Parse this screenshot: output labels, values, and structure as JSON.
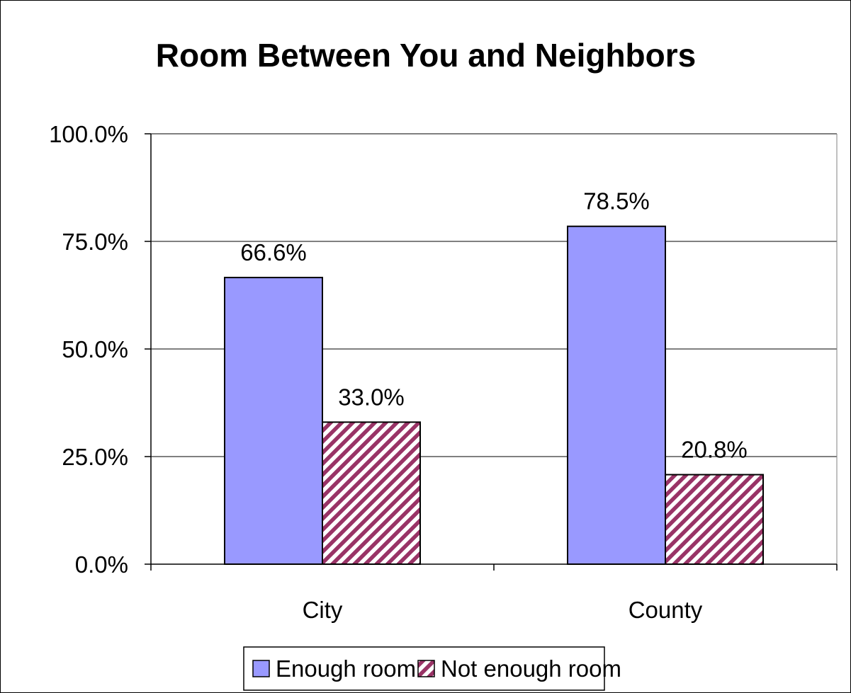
{
  "chart_data": {
    "type": "bar",
    "title": "Room Between You and Neighbors",
    "xlabel": "",
    "ylabel": "",
    "categories": [
      "City",
      "County"
    ],
    "series": [
      {
        "name": "Enough room",
        "values": [
          66.6,
          78.5
        ],
        "labels": [
          "66.6%",
          "78.5%"
        ],
        "color": "#9999ff",
        "pattern": "solid"
      },
      {
        "name": "Not enough room",
        "values": [
          33.0,
          20.8
        ],
        "labels": [
          "33.0%",
          "20.8%"
        ],
        "color": "#993366",
        "pattern": "diagonal-stripes"
      }
    ],
    "ylim": [
      0,
      100
    ],
    "yticks": [
      0,
      25,
      50,
      75,
      100
    ],
    "ytick_labels": [
      "0.0%",
      "25.0%",
      "50.0%",
      "75.0%",
      "100.0%"
    ],
    "grid": true,
    "legend": "bottom"
  }
}
